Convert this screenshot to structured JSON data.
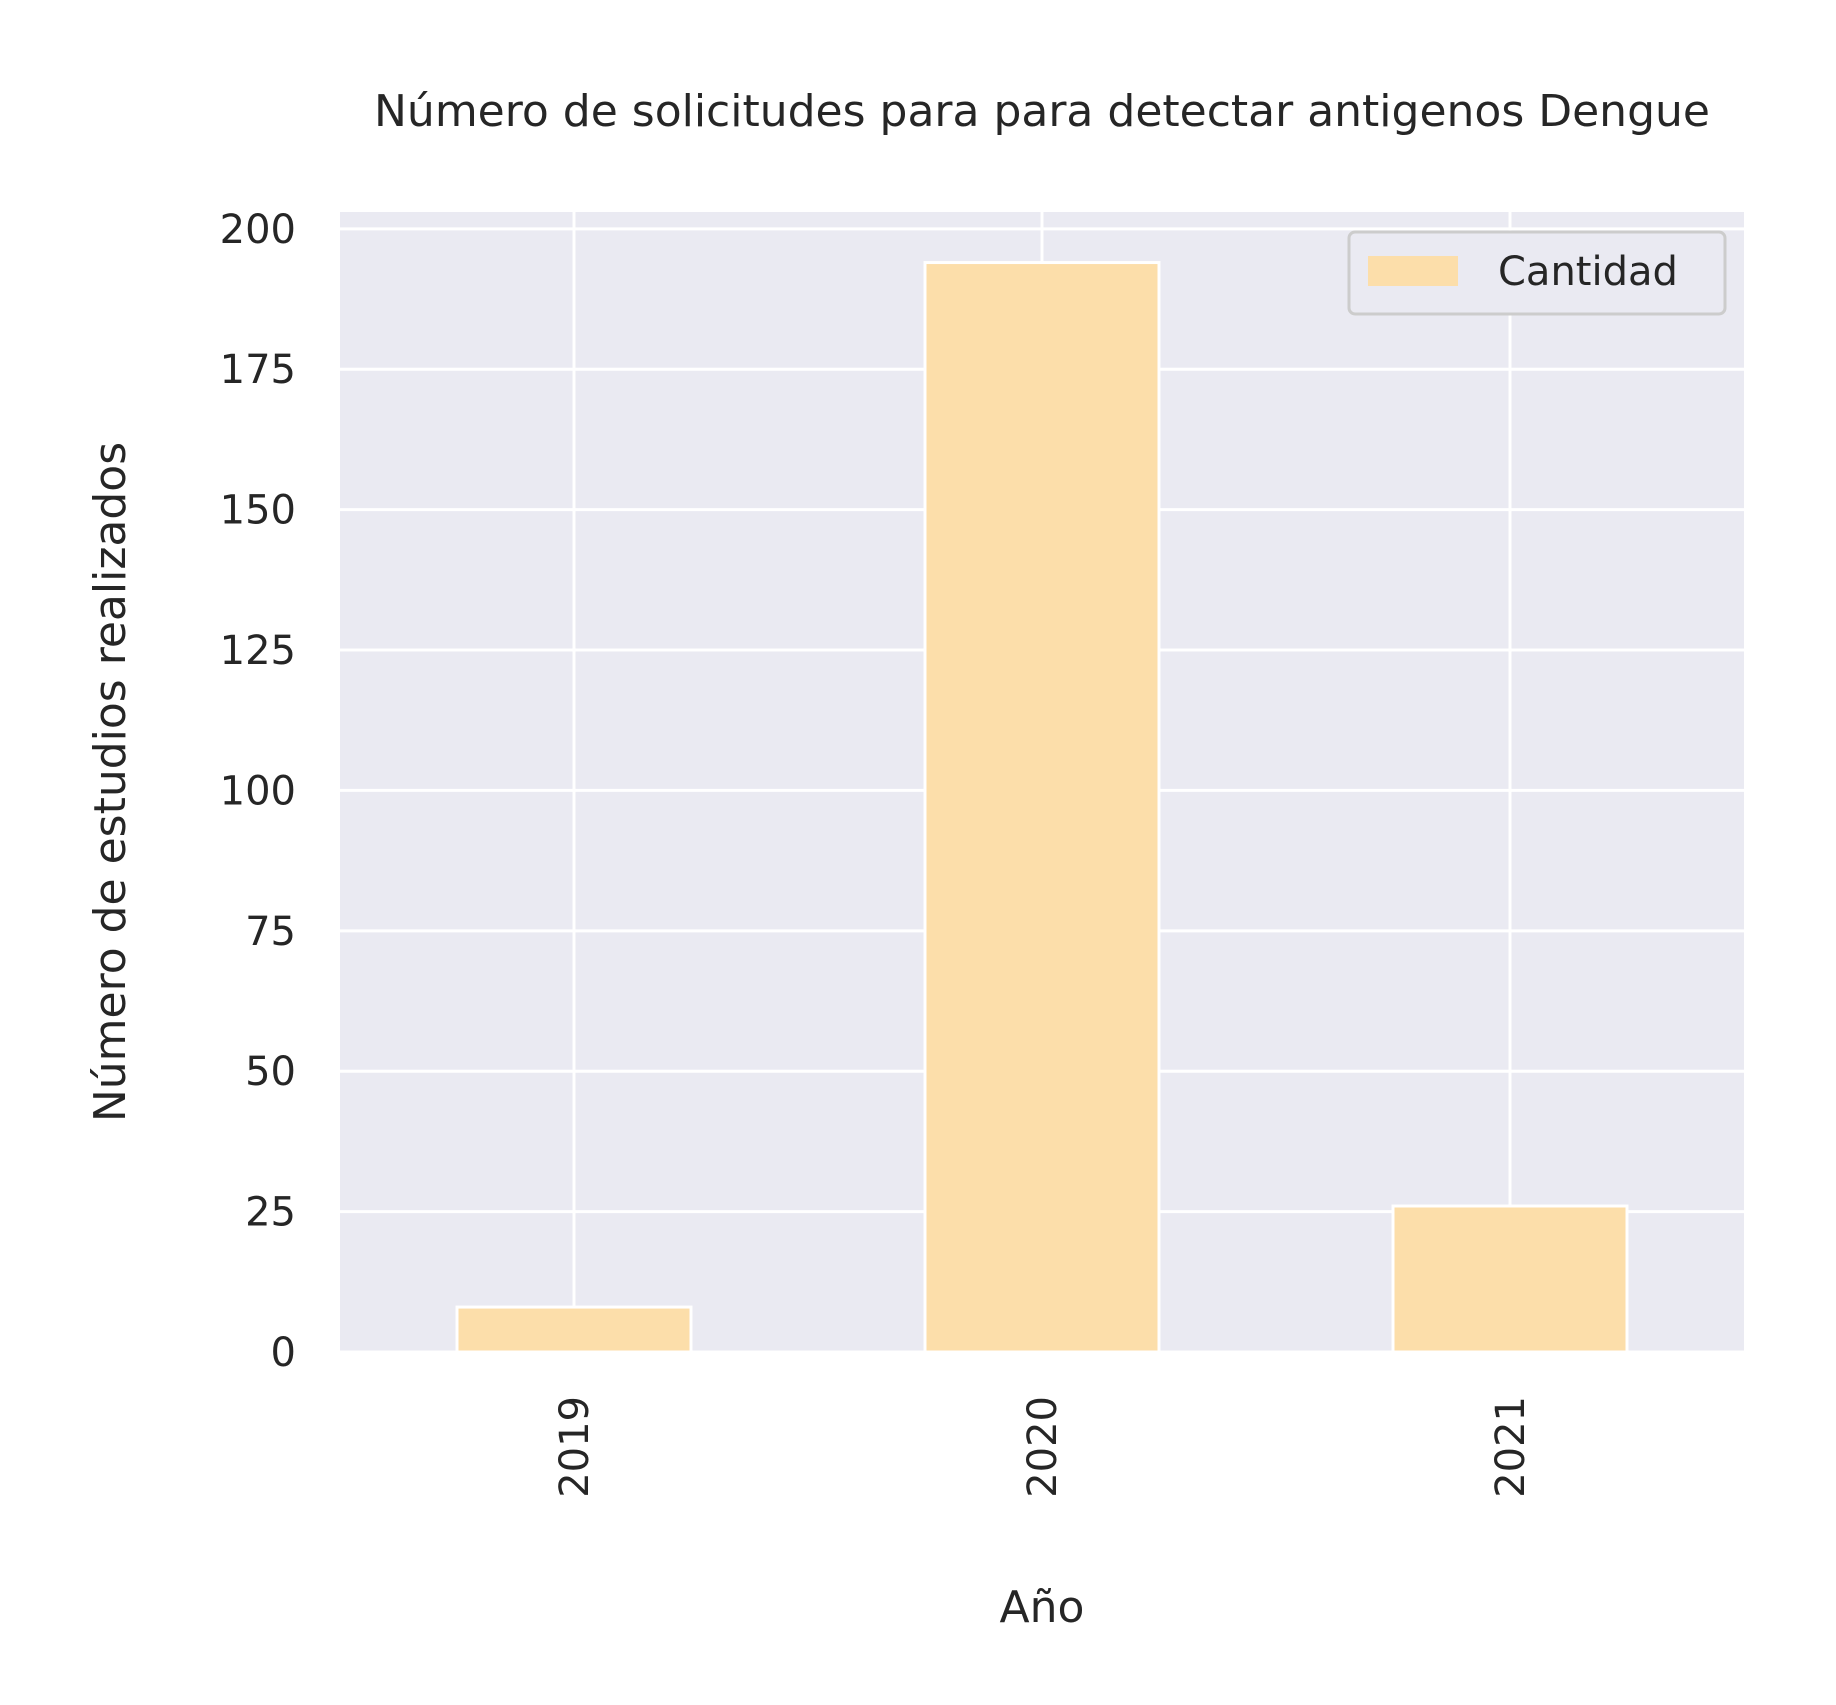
{
  "chart_data": {
    "type": "bar",
    "title": "Número de solicitudes para para detectar antigenos Dengue",
    "xlabel": "Año",
    "ylabel": "Número de estudios realizados",
    "categories": [
      "2019",
      "2020",
      "2021"
    ],
    "series": [
      {
        "name": "Cantidad",
        "values": [
          8,
          194,
          26
        ],
        "color": "#fcdeaa"
      }
    ],
    "ylim": [
      0,
      203
    ],
    "yticks": [
      0,
      25,
      50,
      75,
      100,
      125,
      150,
      175,
      200
    ],
    "grid": true,
    "legend_position": "top-right",
    "background_color": "#eaeaf2",
    "grid_color": "#ffffff",
    "x_tick_rotation": "vertical"
  }
}
